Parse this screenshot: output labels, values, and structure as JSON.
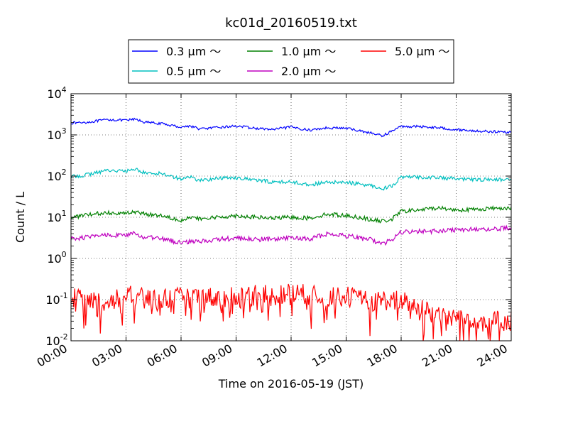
{
  "chart_data": {
    "type": "line",
    "title": "kc01d_20160519.txt",
    "xlabel": "Time on 2016-05-19 (JST)",
    "ylabel": "Count / L",
    "y_scale": "log",
    "xlim": [
      0,
      24
    ],
    "ylim": [
      0.01,
      10000
    ],
    "x_ticks": [
      "00:00",
      "03:00",
      "06:00",
      "09:00",
      "12:00",
      "15:00",
      "18:00",
      "21:00",
      "24:00"
    ],
    "y_tick_mantissa": [
      "10",
      "10",
      "10",
      "10",
      "10",
      "10",
      "10"
    ],
    "y_tick_exponents": [
      "-2",
      "-1",
      "0",
      "1",
      "2",
      "3",
      "4"
    ],
    "grid": true,
    "legend_position": "top-center",
    "x_hours": [
      0,
      1,
      2,
      3,
      3.5,
      4,
      5,
      6,
      6.5,
      7,
      8,
      9,
      10,
      11,
      12,
      13,
      14,
      15,
      16,
      16.4,
      17,
      17.5,
      18,
      19,
      20,
      21,
      22,
      23,
      24
    ],
    "series": [
      {
        "name": "0.3 μm ～",
        "color": "#0000ff",
        "values": [
          1950,
          2050,
          2350,
          2250,
          2400,
          2050,
          1850,
          1550,
          1650,
          1400,
          1500,
          1650,
          1450,
          1350,
          1550,
          1300,
          1500,
          1450,
          1200,
          1100,
          950,
          1250,
          1600,
          1600,
          1500,
          1350,
          1250,
          1200,
          1150
        ]
      },
      {
        "name": "0.5 μm ～",
        "color": "#00bfbf",
        "values": [
          95,
          110,
          140,
          130,
          150,
          120,
          115,
          85,
          95,
          78,
          88,
          92,
          80,
          72,
          72,
          62,
          70,
          70,
          62,
          58,
          50,
          58,
          92,
          95,
          92,
          85,
          82,
          82,
          82
        ]
      },
      {
        "name": "1.0 μm ～",
        "color": "#008000",
        "values": [
          10,
          11.5,
          13,
          12.5,
          13.5,
          12,
          11,
          8.5,
          10,
          9,
          10,
          11,
          10,
          9.5,
          10,
          9.5,
          12,
          11,
          9.5,
          8.5,
          8,
          9,
          14,
          15,
          17,
          15,
          15.5,
          16.5,
          17
        ]
      },
      {
        "name": "2.0 μm ～",
        "color": "#bf00bf",
        "values": [
          3,
          3.3,
          3.8,
          3.6,
          4,
          3.2,
          3,
          2.4,
          2.6,
          2.6,
          2.9,
          3.1,
          2.9,
          2.9,
          3.1,
          3,
          4,
          3.6,
          3,
          2.8,
          2.3,
          2.8,
          4.3,
          4.5,
          4.6,
          5,
          5,
          5.2,
          5.5
        ]
      },
      {
        "name": "5.0 μm ～",
        "color": "#ff0000",
        "values": [
          0.11,
          0.1,
          0.09,
          0.12,
          0.13,
          0.1,
          0.11,
          0.11,
          0.12,
          0.12,
          0.11,
          0.12,
          0.14,
          0.12,
          0.15,
          0.13,
          0.11,
          0.12,
          0.1,
          0.09,
          0.1,
          0.09,
          0.1,
          0.06,
          0.05,
          0.04,
          0.035,
          0.03,
          0.03
        ]
      }
    ]
  }
}
